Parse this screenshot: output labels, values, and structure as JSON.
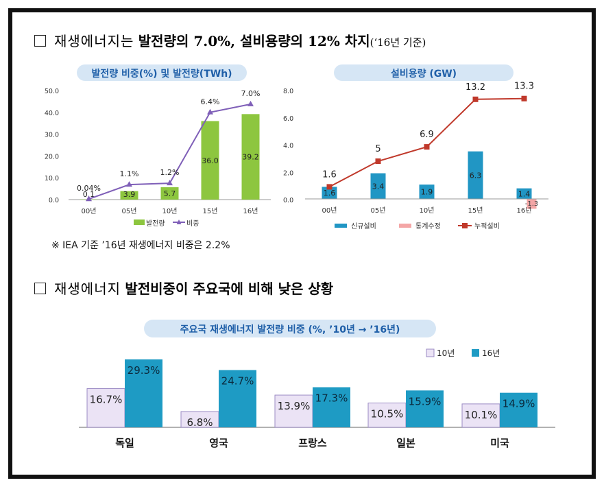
{
  "heading1": {
    "plain": "재생에너지는",
    "bold": "발전량의 7.0%, 설비용량의 12% 차지",
    "small": "(‘16년 기준)"
  },
  "heading2": {
    "plain": "재생에너지",
    "bold": "발전비중이 주요국에 비해 낮은 상황"
  },
  "note": "※ IEA 기준 ’16년 재생에너지 비중은 2.2%",
  "colors": {
    "bar_green": "#8dc63f",
    "line_purple": "#7f5fb8",
    "bar_blue": "#2196c4",
    "line_red": "#c0392b",
    "pink": "#f4a6a6",
    "bar_lavender": "#ebe3f5",
    "bar_teal": "#1e9bc4",
    "pill": "#d6e6f5"
  },
  "chart_data": [
    {
      "type": "bar",
      "title": "발전량 비중(%) 및 발전량(TWh)",
      "categories": [
        "00년",
        "05년",
        "10년",
        "15년",
        "16년"
      ],
      "series": [
        {
          "name": "발전량",
          "type": "bar",
          "axis": "left",
          "values": [
            0.1,
            3.9,
            5.7,
            36.0,
            39.2
          ],
          "labels": [
            "0.1",
            "3.9",
            "5.7",
            "36.0",
            "39.2"
          ]
        },
        {
          "name": "비중",
          "type": "line",
          "axis": "right",
          "values": [
            0.04,
            1.1,
            1.2,
            6.4,
            7.0
          ],
          "labels": [
            "0.04%",
            "1.1%",
            "1.2%",
            "6.4%",
            "7.0%"
          ]
        }
      ],
      "y_left": {
        "min": 0,
        "max": 50,
        "ticks": [
          "0.0",
          "10.0",
          "20.0",
          "30.0",
          "40.0",
          "50.0"
        ]
      },
      "y_right": {
        "min": 0,
        "max": 8,
        "ticks": [
          "0.0",
          "2.0",
          "4.0",
          "6.0",
          "8.0"
        ]
      },
      "legend": "bottom"
    },
    {
      "type": "bar",
      "title": "설비용량 (GW)",
      "categories": [
        "00년",
        "05년",
        "10년",
        "15년",
        "16년"
      ],
      "series": [
        {
          "name": "신규설비",
          "type": "bar",
          "values": [
            1.6,
            3.4,
            1.9,
            6.3,
            1.4
          ],
          "labels": [
            "1.6",
            "3.4",
            "1.9",
            "6.3",
            "1.4"
          ]
        },
        {
          "name": "통계수정",
          "type": "bar",
          "values": [
            0,
            0,
            0,
            0,
            -1.3
          ],
          "labels": [
            "",
            "",
            "",
            "",
            "-1.3"
          ]
        },
        {
          "name": "누적설비",
          "type": "line",
          "values": [
            1.6,
            5,
            6.9,
            13.2,
            13.3
          ],
          "labels": [
            "1.6",
            "5",
            "6.9",
            "13.2",
            "13.3"
          ]
        }
      ],
      "legend": "bottom"
    },
    {
      "type": "bar",
      "title": "주요국 재생에너지 발전량 비중 (%, ’10년 → ’16년)",
      "categories": [
        "독일",
        "영국",
        "프랑스",
        "일본",
        "미국"
      ],
      "series": [
        {
          "name": "10년",
          "values": [
            16.7,
            6.8,
            13.9,
            10.5,
            10.1
          ],
          "labels": [
            "16.7%",
            "6.8%",
            "13.9%",
            "10.5%",
            "10.1%"
          ]
        },
        {
          "name": "16년",
          "values": [
            29.3,
            24.7,
            17.3,
            15.9,
            14.9
          ],
          "labels": [
            "29.3%",
            "24.7%",
            "17.3%",
            "15.9%",
            "14.9%"
          ]
        }
      ],
      "legend": "top-right"
    }
  ]
}
